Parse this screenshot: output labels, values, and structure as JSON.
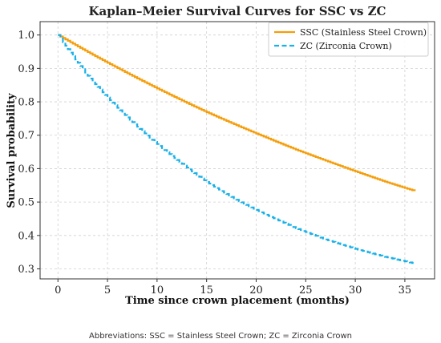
{
  "chart_data": {
    "type": "line",
    "title": "Kaplan–Meier Survival Curves for SSC vs ZC",
    "xlabel": "Time since crown placement (months)",
    "ylabel": "Survival probability",
    "xlim": [
      -1.8,
      38
    ],
    "ylim": [
      0.27,
      1.04
    ],
    "x_ticks": [
      0,
      5,
      10,
      15,
      20,
      25,
      30,
      35
    ],
    "y_ticks": [
      0.3,
      0.4,
      0.5,
      0.6,
      0.7,
      0.8,
      0.9,
      1.0
    ],
    "grid": true,
    "legend_position": "top-right",
    "step": true,
    "series": [
      {
        "name": "SSC (Stainless Steel Crown)",
        "color": "#f59e0b",
        "line_style": "solid",
        "x": [
          0,
          3,
          6,
          9,
          12,
          15,
          18,
          21,
          24,
          27,
          30,
          33,
          36
        ],
        "y": [
          1.0,
          0.949,
          0.901,
          0.855,
          0.811,
          0.769,
          0.73,
          0.693,
          0.657,
          0.624,
          0.592,
          0.561,
          0.533
        ]
      },
      {
        "name": "ZC (Zirconia Crown)",
        "color": "#1ab0e8",
        "line_style": "dashed",
        "x": [
          0,
          3,
          6,
          9,
          12,
          15,
          18,
          21,
          24,
          27,
          30,
          33,
          36
        ],
        "y": [
          1.0,
          0.878,
          0.782,
          0.699,
          0.626,
          0.56,
          0.507,
          0.462,
          0.422,
          0.388,
          0.36,
          0.336,
          0.316
        ]
      }
    ]
  },
  "footnote": "Abbreviations: SSC = Stainless Steel Crown; ZC = Zirconia Crown"
}
